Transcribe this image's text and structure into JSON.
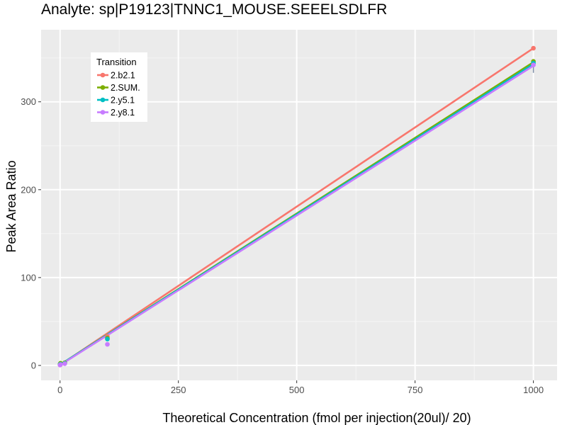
{
  "title": "Analyte: sp|P19123|TNNC1_MOUSE.SEEELSDLFR",
  "chart_data": {
    "type": "line",
    "title": "Analyte: sp|P19123|TNNC1_MOUSE.SEEELSDLFR",
    "xlabel": "Theoretical Concentration (fmol per injection(20ul)/ 20)",
    "ylabel": "Peak Area Ratio",
    "xlim": [
      -40,
      1050
    ],
    "ylim": [
      -17,
      382
    ],
    "x_ticks": [
      0,
      250,
      500,
      750,
      1000
    ],
    "x_tick_labels": [
      "0",
      "250",
      "500",
      "750",
      "1000"
    ],
    "y_ticks": [
      0,
      100,
      200,
      300
    ],
    "y_tick_labels": [
      "0",
      "100",
      "200",
      "300"
    ],
    "x_minor_ticks": [
      125,
      375,
      625,
      875
    ],
    "y_minor_ticks": [
      50,
      150,
      250,
      350
    ],
    "grid": true,
    "legend": {
      "title": "Transition",
      "position": "top-left-inside"
    },
    "series": [
      {
        "name": "2.b2.1",
        "color": "#F8766D",
        "points": [
          [
            0,
            0.5
          ],
          [
            1,
            1.0
          ],
          [
            10,
            3.0
          ],
          [
            100,
            33
          ],
          [
            1000,
            361
          ]
        ],
        "fit": {
          "x": [
            0,
            1000
          ],
          "y": [
            0.5,
            361
          ]
        },
        "error_bar": null
      },
      {
        "name": "2.SUM.",
        "color": "#7CAE00",
        "points": [
          [
            0,
            1.5
          ],
          [
            1,
            2.5
          ],
          [
            10,
            3.0
          ],
          [
            100,
            31
          ],
          [
            1000,
            346
          ]
        ],
        "fit": {
          "x": [
            0,
            1000
          ],
          "y": [
            0.8,
            345
          ]
        },
        "error_bar": null
      },
      {
        "name": "2.y5.1",
        "color": "#00BFC4",
        "points": [
          [
            0,
            1.0
          ],
          [
            1,
            1.5
          ],
          [
            10,
            2.5
          ],
          [
            100,
            30
          ],
          [
            1000,
            344
          ]
        ],
        "fit": {
          "x": [
            0,
            1000
          ],
          "y": [
            0.8,
            343
          ]
        },
        "error_bar": {
          "x": 1000,
          "low": 333,
          "high": 347
        }
      },
      {
        "name": "2.y8.1",
        "color": "#C77CFF",
        "points": [
          [
            0,
            0.5
          ],
          [
            1,
            1.0
          ],
          [
            10,
            2.0
          ],
          [
            100,
            24
          ],
          [
            1000,
            342
          ]
        ],
        "fit": {
          "x": [
            0,
            1000
          ],
          "y": [
            0.3,
            341
          ]
        },
        "error_bar": null
      }
    ]
  }
}
